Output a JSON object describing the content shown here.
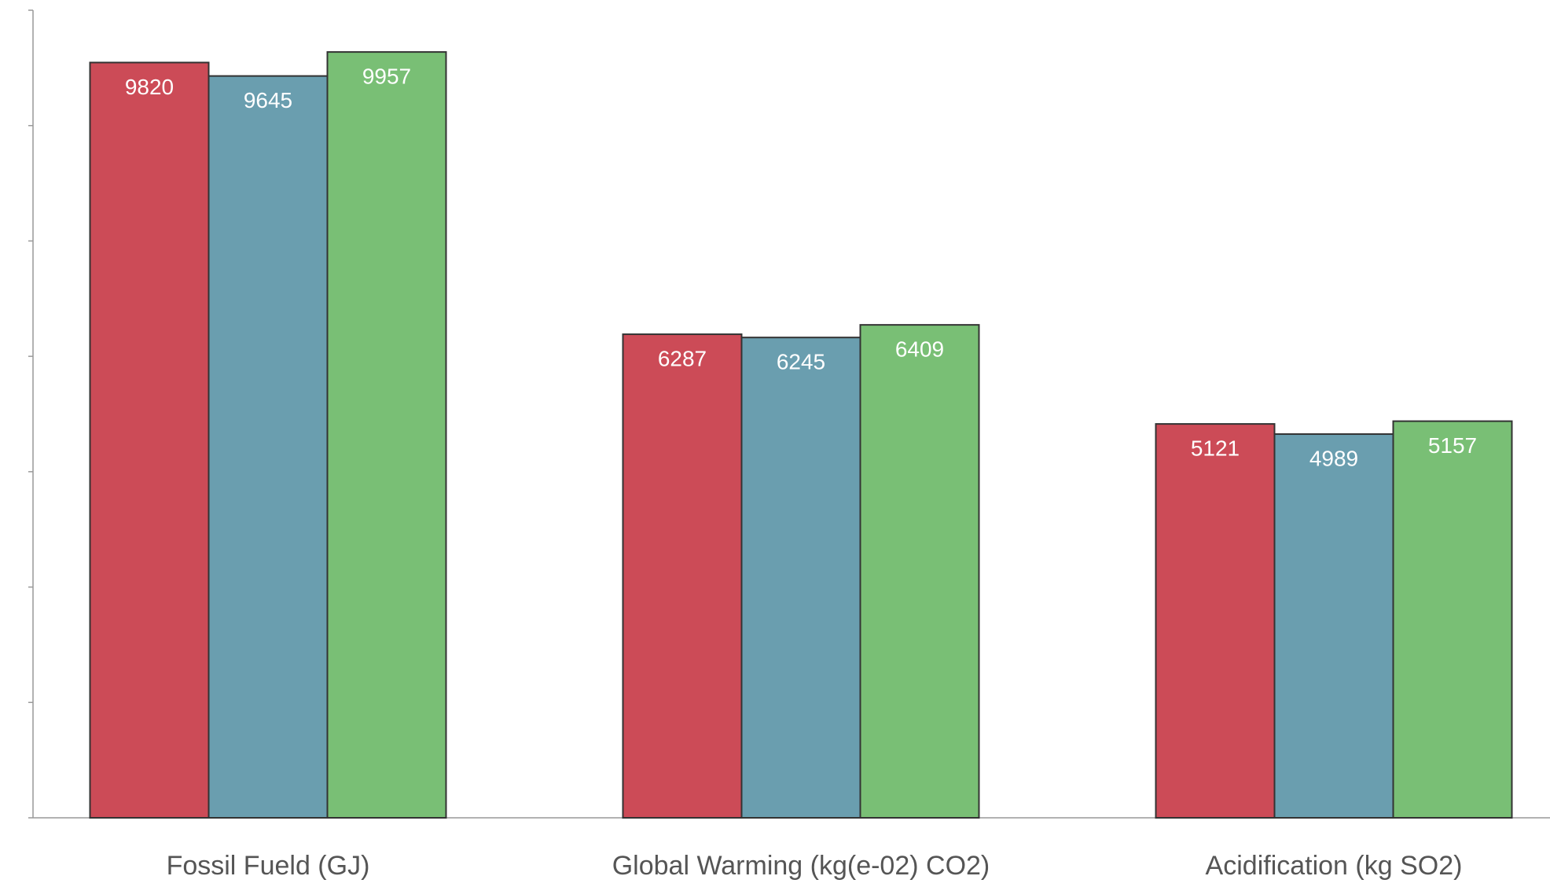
{
  "chart_data": {
    "type": "bar",
    "categories": [
      "Fossil Fueld (GJ)",
      "Global Warming (kg(e-02) CO2)",
      "Acidification (kg SO2)"
    ],
    "series": [
      {
        "color": "#cc4b57",
        "values": [
          9820,
          6287,
          5121
        ]
      },
      {
        "color": "#6a9eaf",
        "values": [
          9645,
          6245,
          4989
        ]
      },
      {
        "color": "#79bf75",
        "values": [
          9957,
          6409,
          5157
        ]
      }
    ],
    "ylim": [
      0,
      10500
    ],
    "yticks": [
      0,
      1500,
      3000,
      4500,
      6000,
      7500,
      9000,
      10500
    ]
  }
}
